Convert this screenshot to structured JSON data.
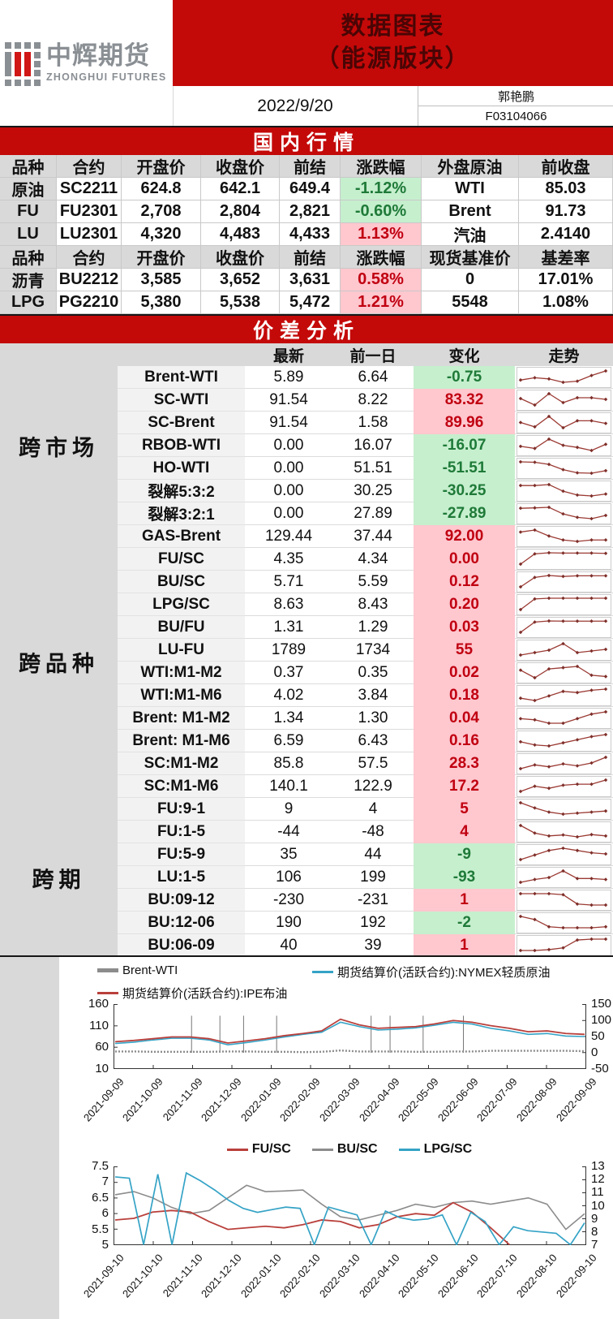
{
  "header": {
    "logo_cn": "中辉期货",
    "logo_en": "ZHONGHUI FUTURES",
    "title_line1": "数据图表",
    "title_line2": "（能源版块）",
    "date": "2022/9/20",
    "analyst_name": "郭艳鹏",
    "analyst_code": "F03104066"
  },
  "colors": {
    "banner_red": "#c40909",
    "pink_bg": "#ffc7ce",
    "pink_text": "#c00011",
    "green_bg": "#c6efce",
    "green_text": "#1f7a38",
    "spark_line": "#9b3a33",
    "gray_series": "#8c8c8c",
    "cyan_series": "#35a3c6",
    "red_series": "#b9403c"
  },
  "market_table": {
    "banner": "国内行情",
    "sections": [
      {
        "headers": [
          "品种",
          "合约",
          "开盘价",
          "收盘价",
          "前结",
          "涨跌幅",
          "外盘原油",
          "前收盘"
        ],
        "rows": [
          {
            "name": "原油",
            "contract": "SC2211",
            "open": "624.8",
            "close": "642.1",
            "prev": "649.4",
            "pct": "-1.12%",
            "dir": "neg",
            "ext_name": "WTI",
            "ext_value": "85.03"
          },
          {
            "name": "FU",
            "contract": "FU2301",
            "open": "2,708",
            "close": "2,804",
            "prev": "2,821",
            "pct": "-0.60%",
            "dir": "neg",
            "ext_name": "Brent",
            "ext_value": "91.73"
          },
          {
            "name": "LU",
            "contract": "LU2301",
            "open": "4,320",
            "close": "4,483",
            "prev": "4,433",
            "pct": "1.13%",
            "dir": "pos",
            "ext_name": "汽油",
            "ext_value": "2.4140"
          }
        ]
      },
      {
        "headers": [
          "品种",
          "合约",
          "开盘价",
          "收盘价",
          "前结",
          "涨跌幅",
          "现货基准价",
          "基差率"
        ],
        "rows": [
          {
            "name": "沥青",
            "contract": "BU2212",
            "open": "3,585",
            "close": "3,652",
            "prev": "3,631",
            "pct": "0.58%",
            "dir": "pos",
            "ext_name": "0",
            "ext_value": "17.01%"
          },
          {
            "name": "LPG",
            "contract": "PG2210",
            "open": "5,380",
            "close": "5,538",
            "prev": "5,472",
            "pct": "1.21%",
            "dir": "pos",
            "ext_name": "5548",
            "ext_value": "1.08%"
          }
        ]
      }
    ]
  },
  "spread_table": {
    "banner": "价差分析",
    "col_headers": [
      "最新",
      "前一日",
      "变化",
      "走势"
    ],
    "groups": [
      {
        "name": "跨市场",
        "rows": [
          {
            "label": "Brent-WTI",
            "latest": "5.89",
            "prev": "6.64",
            "change": "-0.75",
            "dir": "neg",
            "spark": [
              0.45,
              0.55,
              0.5,
              0.35,
              0.4,
              0.65,
              0.85
            ]
          },
          {
            "label": "SC-WTI",
            "latest": "91.54",
            "prev": "8.22",
            "change": "83.32",
            "dir": "pos",
            "spark": [
              0.6,
              0.2,
              0.9,
              0.35,
              0.65,
              0.65,
              0.55
            ]
          },
          {
            "label": "SC-Brent",
            "latest": "91.54",
            "prev": "1.58",
            "change": "89.96",
            "dir": "pos",
            "spark": [
              0.5,
              0.25,
              0.85,
              0.2,
              0.6,
              0.6,
              0.45
            ]
          },
          {
            "label": "RBOB-WTI",
            "latest": "0.00",
            "prev": "16.07",
            "change": "-16.07",
            "dir": "neg",
            "spark": [
              0.5,
              0.4,
              0.85,
              0.55,
              0.45,
              0.3,
              0.6
            ]
          },
          {
            "label": "HO-WTI",
            "latest": "0.00",
            "prev": "51.51",
            "change": "-51.51",
            "dir": "neg",
            "spark": [
              0.82,
              0.8,
              0.7,
              0.45,
              0.3,
              0.28,
              0.4
            ]
          },
          {
            "label": "裂解5:3:2",
            "latest": "0.00",
            "prev": "30.25",
            "change": "-30.25",
            "dir": "neg",
            "spark": [
              0.8,
              0.8,
              0.85,
              0.5,
              0.3,
              0.25,
              0.35
            ]
          },
          {
            "label": "裂解3:2:1",
            "latest": "0.00",
            "prev": "27.89",
            "change": "-27.89",
            "dir": "neg",
            "spark": [
              0.8,
              0.82,
              0.85,
              0.5,
              0.32,
              0.25,
              0.42
            ]
          }
        ]
      },
      {
        "name": "跨品种",
        "rows": [
          {
            "label": "GAS-Brent",
            "latest": "129.44",
            "prev": "37.44",
            "change": "92.00",
            "dir": "pos",
            "spark": [
              0.8,
              0.9,
              0.6,
              0.4,
              0.33,
              0.4,
              0.4
            ]
          },
          {
            "label": "FU/SC",
            "latest": "4.35",
            "prev": "4.34",
            "change": "0.00",
            "dir": "pos",
            "spark": [
              0.1,
              0.75,
              0.82,
              0.8,
              0.8,
              0.8,
              0.78
            ]
          },
          {
            "label": "BU/SC",
            "latest": "5.71",
            "prev": "5.59",
            "change": "0.12",
            "dir": "pos",
            "spark": [
              0.1,
              0.7,
              0.82,
              0.76,
              0.8,
              0.8,
              0.8
            ]
          },
          {
            "label": "LPG/SC",
            "latest": "8.63",
            "prev": "8.43",
            "change": "0.20",
            "dir": "pos",
            "spark": [
              0.08,
              0.8,
              0.85,
              0.85,
              0.85,
              0.85,
              0.85
            ]
          },
          {
            "label": "BU/FU",
            "latest": "1.31",
            "prev": "1.29",
            "change": "0.03",
            "dir": "pos",
            "spark": [
              0.15,
              0.7,
              0.76,
              0.75,
              0.75,
              0.75,
              0.75
            ]
          },
          {
            "label": "LU-FU",
            "latest": "1789",
            "prev": "1734",
            "change": "55",
            "dir": "pos",
            "spark": [
              0.2,
              0.35,
              0.5,
              0.9,
              0.35,
              0.45,
              0.55
            ]
          },
          {
            "label": "WTI:M1-M2",
            "latest": "0.37",
            "prev": "0.35",
            "change": "0.02",
            "dir": "pos",
            "spark": [
              0.6,
              0.3,
              0.65,
              0.7,
              0.75,
              0.4,
              0.35
            ]
          },
          {
            "label": "WTI:M1-M6",
            "latest": "4.02",
            "prev": "3.84",
            "change": "0.18",
            "dir": "pos",
            "spark": [
              0.4,
              0.3,
              0.5,
              0.7,
              0.65,
              0.75,
              0.8
            ]
          },
          {
            "label": "Brent: M1-M2",
            "latest": "1.34",
            "prev": "1.30",
            "change": "0.04",
            "dir": "pos",
            "spark": [
              0.55,
              0.5,
              0.35,
              0.35,
              0.55,
              0.75,
              0.85
            ]
          },
          {
            "label": "Brent: M1-M6",
            "latest": "6.59",
            "prev": "6.43",
            "change": "0.16",
            "dir": "pos",
            "spark": [
              0.5,
              0.35,
              0.3,
              0.45,
              0.6,
              0.75,
              0.85
            ]
          },
          {
            "label": "SC:M1-M2",
            "latest": "85.8",
            "prev": "57.5",
            "change": "28.3",
            "dir": "pos",
            "spark": [
              0.3,
              0.5,
              0.4,
              0.55,
              0.45,
              0.6,
              0.9
            ]
          },
          {
            "label": "SC:M1-M6",
            "latest": "140.1",
            "prev": "122.9",
            "change": "17.2",
            "dir": "pos",
            "spark": [
              0.35,
              0.6,
              0.5,
              0.65,
              0.7,
              0.7,
              0.9
            ]
          }
        ]
      },
      {
        "name": "跨期",
        "rows": [
          {
            "label": "FU:9-1",
            "latest": "9",
            "prev": "4",
            "change": "5",
            "dir": "pos",
            "spark": [
              0.85,
              0.6,
              0.4,
              0.3,
              0.35,
              0.4,
              0.45
            ]
          },
          {
            "label": "FU:1-5",
            "latest": "-44",
            "prev": "-48",
            "change": "4",
            "dir": "pos",
            "spark": [
              0.9,
              0.5,
              0.35,
              0.4,
              0.3,
              0.42,
              0.35
            ]
          },
          {
            "label": "FU:5-9",
            "latest": "35",
            "prev": "44",
            "change": "-9",
            "dir": "neg",
            "spark": [
              0.3,
              0.5,
              0.7,
              0.8,
              0.7,
              0.6,
              0.55
            ]
          },
          {
            "label": "LU:1-5",
            "latest": "106",
            "prev": "199",
            "change": "-93",
            "dir": "neg",
            "spark": [
              0.3,
              0.45,
              0.55,
              0.9,
              0.5,
              0.5,
              0.45
            ]
          },
          {
            "label": "BU:09-12",
            "latest": "-230",
            "prev": "-231",
            "change": "1",
            "dir": "pos",
            "spark": [
              0.8,
              0.8,
              0.8,
              0.75,
              0.3,
              0.25,
              0.25
            ]
          },
          {
            "label": "BU:12-06",
            "latest": "190",
            "prev": "192",
            "change": "-2",
            "dir": "neg",
            "spark": [
              0.9,
              0.75,
              0.4,
              0.35,
              0.35,
              0.35,
              0.4
            ]
          },
          {
            "label": "BU:06-09",
            "latest": "40",
            "prev": "39",
            "change": "1",
            "dir": "pos",
            "spark": [
              0.15,
              0.15,
              0.2,
              0.3,
              0.75,
              0.8,
              0.8
            ]
          }
        ]
      }
    ]
  },
  "chart_data": [
    {
      "type": "line",
      "title": "",
      "legend": [
        {
          "label": "Brent-WTI",
          "color": "#8c8c8c",
          "thick": true
        },
        {
          "label": "期货结算价(活跃合约):NYMEX轻质原油",
          "color": "#35a3c6"
        },
        {
          "label": "期货结算价(活跃合约):IPE布油",
          "color": "#b9403c"
        }
      ],
      "left_axis": {
        "ticks": [
          160,
          110,
          60,
          10
        ],
        "min": 10,
        "max": 160
      },
      "right_axis": {
        "ticks": [
          150,
          100,
          50,
          0,
          -50
        ],
        "min": -50,
        "max": 150
      },
      "x_labels": [
        "2021-09-09",
        "2021-10-09",
        "2021-11-09",
        "2021-12-09",
        "2022-01-09",
        "2022-02-09",
        "2022-03-09",
        "2022-04-09",
        "2022-05-09",
        "2022-06-09",
        "2022-07-09",
        "2022-08-09",
        "2022-09-09"
      ],
      "vlines": [
        0.165,
        0.225,
        0.275,
        0.345,
        0.545,
        0.585,
        0.655,
        0.74
      ],
      "series": [
        {
          "name": "Brent-WTI",
          "axis": "right",
          "color": "#8c8c8c",
          "width": 2.4,
          "dash": "2,2",
          "values": [
            4,
            4,
            3,
            3,
            3,
            3,
            4,
            4,
            3,
            3,
            2,
            3,
            7,
            4,
            4,
            4,
            3,
            3,
            4,
            4,
            6,
            6,
            6,
            6,
            6,
            5
          ]
        },
        {
          "name": "期货结算价(活跃合约):NYMEX轻质原油",
          "axis": "left",
          "color": "#35a3c6",
          "width": 1.6,
          "values": [
            69,
            72,
            77,
            81,
            81,
            77,
            66,
            71,
            77,
            84,
            90,
            95,
            118,
            108,
            100,
            102,
            105,
            111,
            118,
            114,
            104,
            98,
            90,
            92,
            86,
            85
          ]
        },
        {
          "name": "期货结算价(活跃合约):IPE布油",
          "axis": "left",
          "color": "#b9403c",
          "width": 1.8,
          "values": [
            73,
            76,
            80,
            84,
            84,
            80,
            70,
            75,
            80,
            87,
            92,
            98,
            125,
            112,
            104,
            106,
            108,
            114,
            122,
            118,
            110,
            104,
            96,
            98,
            92,
            90
          ]
        }
      ]
    },
    {
      "type": "line",
      "title": "",
      "legend": [
        {
          "label": "FU/SC",
          "color": "#b9403c"
        },
        {
          "label": "BU/SC",
          "color": "#8c8c8c"
        },
        {
          "label": "LPG/SC",
          "color": "#35a3c6"
        }
      ],
      "left_axis": {
        "ticks": [
          7.5,
          7,
          6.5,
          6,
          5.5,
          5
        ],
        "min": 5,
        "max": 7.5
      },
      "right_axis": {
        "ticks": [
          13,
          12,
          11,
          10,
          9,
          8,
          7
        ],
        "min": 7,
        "max": 13
      },
      "x_labels": [
        "2021-09-10",
        "2021-10-10",
        "2021-11-10",
        "2021-12-10",
        "2022-01-10",
        "2022-02-10",
        "2022-03-10",
        "2022-04-10",
        "2022-05-10",
        "2022-06-10",
        "2022-07-10",
        "2022-08-10",
        "2022-09-10"
      ],
      "vlines": [],
      "series": [
        {
          "name": "BU/SC",
          "axis": "left",
          "color": "#8c8c8c",
          "width": 1.6,
          "values": [
            6.6,
            6.7,
            6.5,
            6.2,
            6.0,
            6.1,
            6.5,
            6.9,
            6.7,
            6.72,
            6.75,
            6.3,
            5.9,
            5.8,
            5.95,
            6.1,
            6.3,
            6.2,
            6.35,
            6.4,
            6.3,
            6.4,
            6.5,
            6.3,
            5.5,
            6.0
          ]
        },
        {
          "name": "FU/SC",
          "axis": "left",
          "color": "#b9403c",
          "width": 1.8,
          "values": [
            5.8,
            5.85,
            6.05,
            6.1,
            6.05,
            5.75,
            5.5,
            5.55,
            5.6,
            5.55,
            5.65,
            5.8,
            5.75,
            5.55,
            5.65,
            5.9,
            6.0,
            5.95,
            6.35,
            6.05,
            5.55,
            5.0,
            null,
            null,
            null,
            null
          ]
        },
        {
          "name": "LPG/SC",
          "axis": "right",
          "color": "#35a3c6",
          "width": 1.7,
          "values": [
            12.2,
            12.1,
            7,
            12.4,
            7,
            12.5,
            11.9,
            11.2,
            10.4,
            9.8,
            9.5,
            9.7,
            9.9,
            9.8,
            7,
            9.9,
            9.6,
            9.3,
            7,
            9.6,
            9.1,
            8.9,
            9.0,
            9.3,
            7,
            9.5,
            8.8,
            7,
            8.4,
            8.1,
            8.0,
            7.9,
            7,
            8.7
          ]
        }
      ]
    }
  ]
}
